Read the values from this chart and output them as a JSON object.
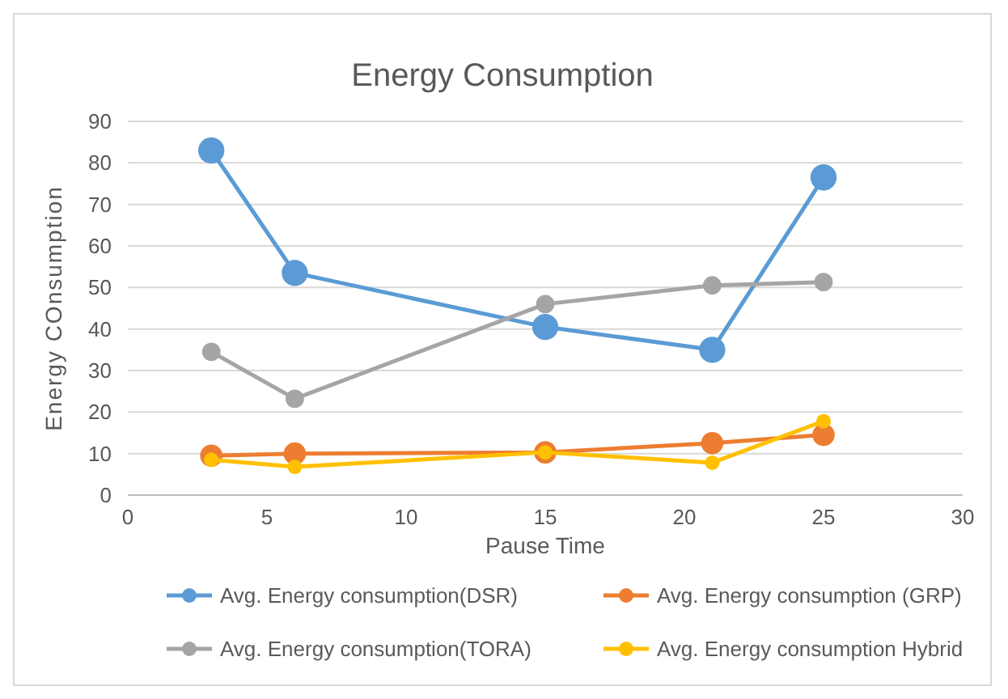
{
  "chart_data": {
    "type": "line",
    "title": "Energy Consumption",
    "xlabel": "Pause Time",
    "ylabel": "Energy COnsumption",
    "x": [
      3,
      6,
      15,
      21,
      25
    ],
    "series": [
      {
        "name": "Avg. Energy consumption(DSR)",
        "color": "#5b9bd5",
        "values": [
          83,
          53.5,
          40.5,
          35,
          76.5
        ]
      },
      {
        "name": "Avg. Energy consumption (GRP)",
        "color": "#ed7d31",
        "values": [
          9.5,
          10,
          10.3,
          12.5,
          14.5
        ]
      },
      {
        "name": "Avg. Energy consumption(TORA)",
        "color": "#a5a5a5",
        "values": [
          34.5,
          23.2,
          46,
          50.5,
          51.3
        ]
      },
      {
        "name": "Avg. Energy consumption Hybrid",
        "color": "#ffc000",
        "values": [
          8.5,
          6.8,
          10.3,
          7.8,
          17.8
        ]
      }
    ],
    "xlim": [
      0,
      30
    ],
    "xticks": [
      0,
      5,
      10,
      15,
      20,
      25,
      30
    ],
    "ylim": [
      0,
      90
    ],
    "yticks": [
      0,
      10,
      20,
      30,
      40,
      50,
      60,
      70,
      80,
      90
    ],
    "grid": "y",
    "legend": "bottom",
    "marker": "circle",
    "line_style": "solid"
  }
}
